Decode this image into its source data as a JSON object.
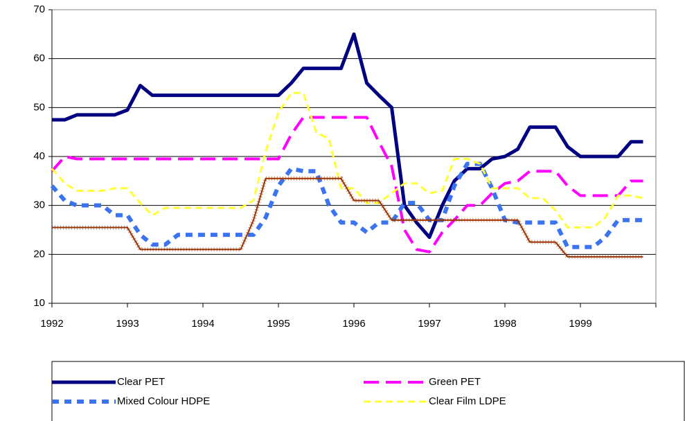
{
  "chart_data": {
    "type": "line",
    "x": [
      1992.0,
      1992.17,
      1992.33,
      1992.5,
      1992.67,
      1992.83,
      1993.0,
      1993.17,
      1993.33,
      1993.5,
      1993.67,
      1993.83,
      1994.0,
      1994.17,
      1994.33,
      1994.5,
      1994.67,
      1994.83,
      1995.0,
      1995.17,
      1995.33,
      1995.5,
      1995.67,
      1995.83,
      1996.0,
      1996.17,
      1996.33,
      1996.5,
      1996.67,
      1996.83,
      1997.0,
      1997.17,
      1997.33,
      1997.5,
      1997.67,
      1997.83,
      1998.0,
      1998.17,
      1998.33,
      1998.5,
      1998.67,
      1998.83,
      1999.0,
      1999.17,
      1999.33,
      1999.5,
      1999.67,
      1999.83
    ],
    "series": [
      {
        "name": "Clear PET",
        "color": "#000080",
        "values": [
          47.5,
          47.5,
          48.5,
          48.5,
          48.5,
          48.5,
          49.5,
          54.5,
          52.5,
          52.5,
          52.5,
          52.5,
          52.5,
          52.5,
          52.5,
          52.5,
          52.5,
          52.5,
          52.5,
          55,
          58,
          58,
          58,
          58,
          65,
          55,
          52.5,
          50,
          30,
          26.5,
          23.5,
          30,
          35,
          37.5,
          37.5,
          39.5,
          40,
          41.5,
          46,
          46,
          46,
          42,
          40,
          40,
          40,
          40,
          43,
          43
        ]
      },
      {
        "name": "Green PET",
        "color": "#ff00ff",
        "values": [
          37,
          40,
          39.5,
          39.5,
          39.5,
          39.5,
          39.5,
          39.5,
          39.5,
          39.5,
          39.5,
          39.5,
          39.5,
          39.5,
          39.5,
          39.5,
          39.5,
          39.5,
          39.5,
          44.5,
          48,
          48,
          48,
          48,
          48,
          48,
          43,
          38,
          25,
          21,
          20.5,
          24.5,
          27,
          30,
          30,
          32.5,
          34.5,
          35,
          37,
          37,
          37,
          34,
          32,
          32,
          32,
          32,
          35,
          35
        ]
      },
      {
        "name": "Mixed Colour HDPE",
        "color": "#3b73f0",
        "values": [
          34,
          31,
          30,
          30,
          30,
          28,
          28,
          24,
          22,
          22,
          24,
          24,
          24,
          24,
          24,
          24,
          24,
          27.5,
          34,
          37.5,
          37,
          37,
          30,
          26.5,
          26.5,
          24.5,
          26.5,
          26.5,
          30.5,
          30.5,
          27,
          27,
          34,
          38.5,
          38.5,
          33.5,
          27,
          26.5,
          26.5,
          26.5,
          26.5,
          21.5,
          21.5,
          21.5,
          23.5,
          27,
          27,
          27
        ]
      },
      {
        "name": "Clear Film LDPE",
        "color": "#ffff33",
        "values": [
          37.5,
          34.5,
          33,
          33,
          33,
          33.5,
          33.5,
          30.5,
          28,
          29.5,
          29.5,
          29.5,
          29.5,
          29.5,
          29.5,
          29.5,
          31,
          41,
          49,
          53,
          53,
          45,
          43.5,
          33.5,
          33.5,
          30.5,
          30.5,
          32.5,
          34.5,
          34.5,
          32.5,
          33,
          39.5,
          39.5,
          38.5,
          33.5,
          33.5,
          33.5,
          31.5,
          31.5,
          29,
          25.5,
          25.5,
          25.5,
          27.5,
          32,
          32,
          31.5
        ]
      },
      {
        "color": "#993300",
        "values": [
          25.5,
          25.5,
          25.5,
          25.5,
          25.5,
          25.5,
          25.5,
          21,
          21,
          21,
          21,
          21,
          21,
          21,
          21,
          21,
          27,
          35.5,
          35.5,
          35.5,
          35.5,
          35.5,
          35.5,
          35.5,
          31,
          31,
          31,
          27,
          27,
          27,
          27,
          27,
          27,
          27,
          27,
          27,
          27,
          27,
          22.5,
          22.5,
          22.5,
          19.5,
          19.5,
          19.5,
          19.5,
          19.5,
          19.5,
          19.5
        ]
      }
    ],
    "xlim": [
      1992,
      2000
    ],
    "xticks": [
      1992,
      1993,
      1994,
      1995,
      1996,
      1997,
      1998,
      1999
    ],
    "ylim": [
      10,
      70
    ],
    "yticks": [
      10,
      20,
      30,
      40,
      50,
      60,
      70
    ],
    "grid": true,
    "legend": "bottom"
  }
}
